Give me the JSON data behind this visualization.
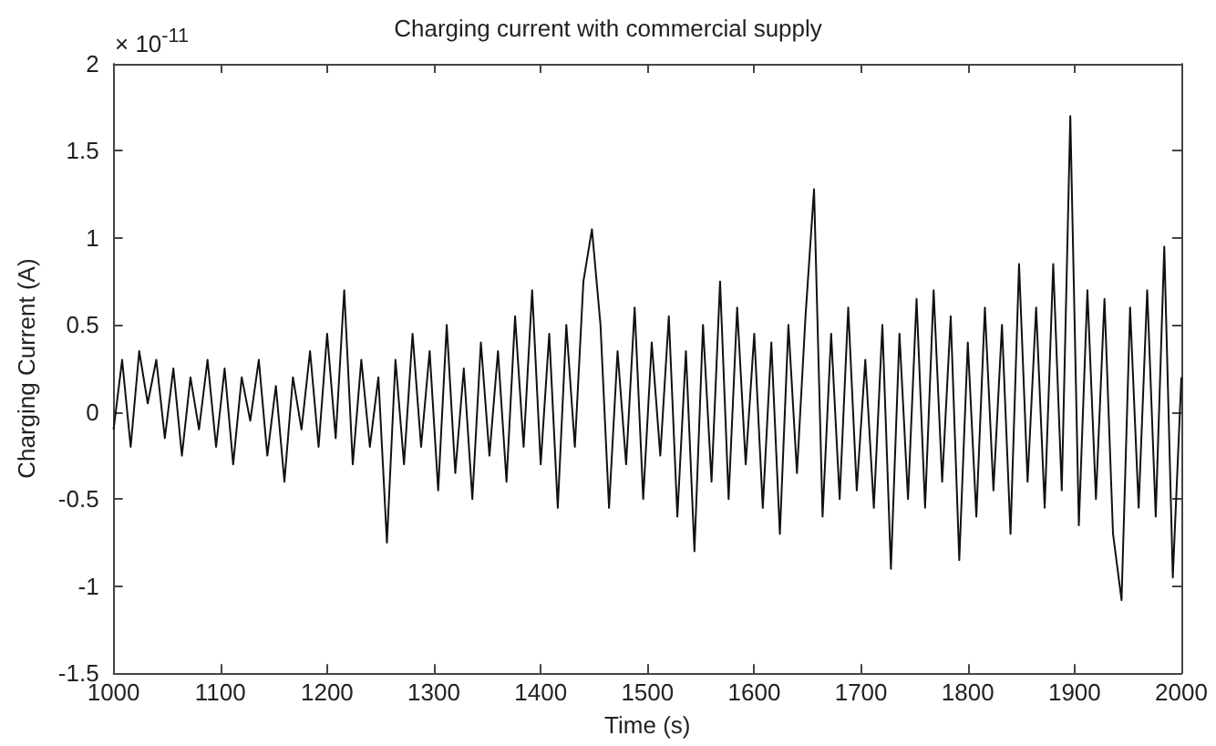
{
  "chart_data": {
    "type": "line",
    "title": "Charging current with commercial supply",
    "xlabel": "Time (s)",
    "ylabel": "Charging Current (A)",
    "annotations": [
      "× 10$^{-11}$"
    ],
    "x": [
      1000,
      1008,
      1016,
      1024,
      1032,
      1040,
      1048,
      1056,
      1064,
      1072,
      1080,
      1088,
      1096,
      1104,
      1112,
      1120,
      1128,
      1136,
      1144,
      1152,
      1160,
      1168,
      1176,
      1184,
      1192,
      1200,
      1208,
      1216,
      1224,
      1232,
      1240,
      1248,
      1256,
      1264,
      1272,
      1280,
      1288,
      1296,
      1304,
      1312,
      1320,
      1328,
      1336,
      1344,
      1352,
      1360,
      1368,
      1376,
      1384,
      1392,
      1400,
      1408,
      1416,
      1424,
      1432,
      1440,
      1448,
      1456,
      1464,
      1472,
      1480,
      1488,
      1496,
      1504,
      1512,
      1520,
      1528,
      1536,
      1544,
      1552,
      1560,
      1568,
      1576,
      1584,
      1592,
      1600,
      1608,
      1616,
      1624,
      1632,
      1640,
      1648,
      1656,
      1664,
      1672,
      1680,
      1688,
      1696,
      1704,
      1712,
      1720,
      1728,
      1736,
      1744,
      1752,
      1760,
      1768,
      1776,
      1784,
      1792,
      1800,
      1808,
      1816,
      1824,
      1832,
      1840,
      1848,
      1856,
      1864,
      1872,
      1880,
      1888,
      1896,
      1904,
      1912,
      1920,
      1928,
      1936,
      1944,
      1952,
      1960,
      1968,
      1976,
      1984,
      1992,
      2000
    ],
    "series": [
      {
        "color": "#111111",
        "values": [
          -0.1,
          0.3,
          -0.2,
          0.35,
          0.05,
          0.3,
          -0.15,
          0.25,
          -0.25,
          0.2,
          -0.1,
          0.3,
          -0.2,
          0.25,
          -0.3,
          0.2,
          -0.05,
          0.3,
          -0.25,
          0.15,
          -0.4,
          0.2,
          -0.1,
          0.35,
          -0.2,
          0.45,
          -0.15,
          0.7,
          -0.3,
          0.3,
          -0.2,
          0.2,
          -0.75,
          0.3,
          -0.3,
          0.45,
          -0.2,
          0.35,
          -0.45,
          0.5,
          -0.35,
          0.25,
          -0.5,
          0.4,
          -0.25,
          0.35,
          -0.4,
          0.55,
          -0.2,
          0.7,
          -0.3,
          0.45,
          -0.55,
          0.5,
          -0.2,
          0.75,
          1.05,
          0.5,
          -0.55,
          0.35,
          -0.3,
          0.6,
          -0.5,
          0.4,
          -0.25,
          0.55,
          -0.6,
          0.35,
          -0.8,
          0.5,
          -0.4,
          0.75,
          -0.5,
          0.6,
          -0.3,
          0.45,
          -0.55,
          0.4,
          -0.7,
          0.5,
          -0.35,
          0.55,
          1.28,
          -0.6,
          0.45,
          -0.5,
          0.6,
          -0.45,
          0.3,
          -0.55,
          0.5,
          -0.9,
          0.45,
          -0.5,
          0.65,
          -0.55,
          0.7,
          -0.4,
          0.55,
          -0.85,
          0.4,
          -0.6,
          0.6,
          -0.45,
          0.5,
          -0.7,
          0.85,
          -0.4,
          0.6,
          -0.55,
          0.85,
          -0.45,
          1.7,
          -0.65,
          0.7,
          -0.5,
          0.65,
          -0.7,
          -1.08,
          0.6,
          -0.55,
          0.7,
          -0.6,
          0.95,
          -0.95,
          0.2
        ]
      }
    ],
    "xlim": [
      1000,
      2000
    ],
    "xticks": [
      1000,
      1100,
      1200,
      1300,
      1400,
      1500,
      1600,
      1700,
      1800,
      1900,
      2000
    ],
    "ylim": [
      -1.5,
      2
    ],
    "yticks": [
      -1.5,
      -1,
      -0.5,
      0,
      0.5,
      1,
      1.5,
      2
    ],
    "grid": false
  }
}
